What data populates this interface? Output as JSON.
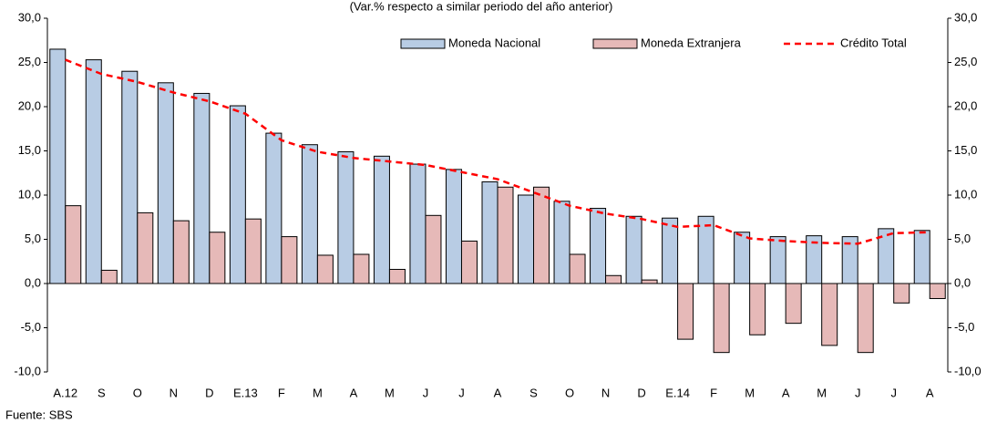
{
  "chart_data": {
    "type": "bar_line",
    "subtitle": "(Var.% respecto a similar periodo del año anterior)",
    "source": "Fuente: SBS",
    "categories": [
      "A.12",
      "S",
      "O",
      "N",
      "D",
      "E.13",
      "F",
      "M",
      "A",
      "M",
      "J",
      "J",
      "A",
      "S",
      "O",
      "N",
      "D",
      "E.14",
      "F",
      "M",
      "A",
      "M",
      "J",
      "J",
      "A"
    ],
    "series": [
      {
        "name": "Moneda Nacional",
        "type": "bar",
        "color": "#b8cce4",
        "values": [
          26.5,
          25.3,
          24.0,
          22.7,
          21.5,
          20.1,
          17.0,
          15.7,
          14.9,
          14.4,
          13.5,
          12.9,
          11.5,
          10.0,
          9.3,
          8.5,
          7.6,
          7.4,
          7.6,
          5.8,
          5.3,
          5.4,
          5.3,
          6.2,
          6.0
        ]
      },
      {
        "name": "Moneda Extranjera",
        "type": "bar",
        "color": "#e6b9b8",
        "values": [
          8.8,
          1.5,
          8.0,
          7.1,
          5.8,
          7.3,
          5.3,
          3.2,
          3.3,
          1.6,
          7.7,
          4.8,
          10.9,
          10.9,
          3.3,
          0.9,
          0.4,
          -6.3,
          -7.8,
          -5.8,
          -4.5,
          -7.0,
          -7.8,
          -2.2,
          -1.7
        ]
      },
      {
        "name": "Crédito Total",
        "type": "line",
        "color": "#ff0000",
        "dashed": true,
        "values": [
          25.3,
          23.7,
          22.8,
          21.6,
          20.6,
          19.2,
          16.2,
          14.9,
          14.2,
          13.8,
          13.4,
          12.6,
          11.8,
          10.3,
          8.8,
          7.9,
          7.3,
          6.4,
          6.6,
          5.1,
          4.8,
          4.6,
          4.5,
          5.7,
          5.8
        ]
      }
    ],
    "ylim": [
      -10,
      30
    ],
    "yticks": [
      {
        "value": -10,
        "label": "-10,0"
      },
      {
        "value": -5,
        "label": "-5,0"
      },
      {
        "value": 0,
        "label": "0,0"
      },
      {
        "value": 5,
        "label": "5,0"
      },
      {
        "value": 10,
        "label": "10,0"
      },
      {
        "value": 15,
        "label": "15,0"
      },
      {
        "value": 20,
        "label": "20,0"
      },
      {
        "value": 25,
        "label": "25,0"
      },
      {
        "value": 30,
        "label": "30,0"
      }
    ],
    "y2lim": [
      -10,
      30
    ],
    "y2ticks": [
      {
        "value": -10,
        "label": "-10,0"
      },
      {
        "value": -5,
        "label": "-5,0"
      },
      {
        "value": 0,
        "label": "0,0"
      },
      {
        "value": 5,
        "label": "5,0"
      },
      {
        "value": 10,
        "label": "10,0"
      },
      {
        "value": 15,
        "label": "15,0"
      },
      {
        "value": 20,
        "label": "20,0"
      },
      {
        "value": 25,
        "label": "25,0"
      },
      {
        "value": 30,
        "label": "30,0"
      }
    ],
    "legend": "top-right"
  }
}
